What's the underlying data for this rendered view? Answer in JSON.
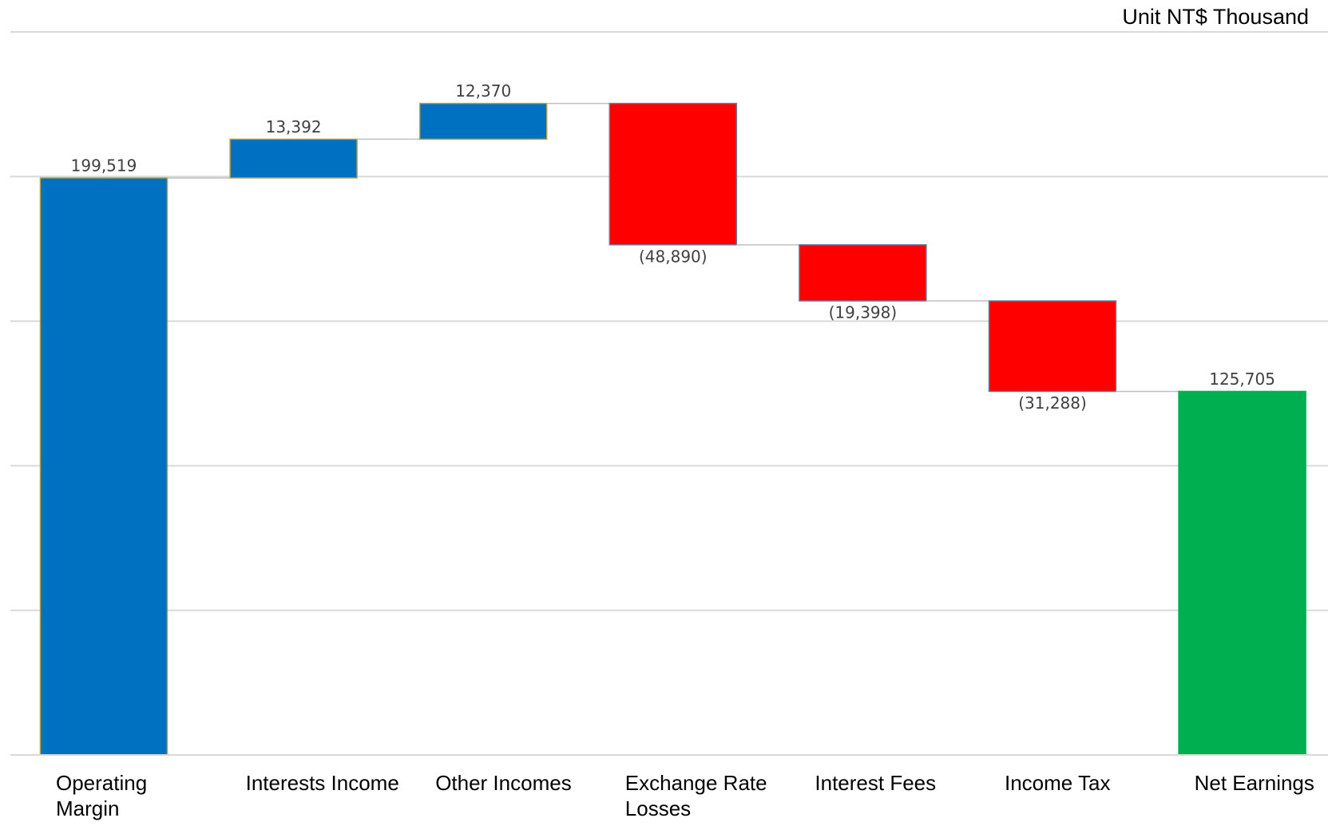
{
  "chart_data": {
    "type": "waterfall",
    "unit_label": "Unit NT$ Thousand",
    "categories": [
      "Operating Margin",
      "Interests Income",
      "Other Incomes",
      "Exchange Rate Losses",
      "Interest Fees",
      "Income Tax",
      "Net Earnings"
    ],
    "measure": [
      "absolute",
      "relative",
      "relative",
      "relative",
      "relative",
      "relative",
      "total"
    ],
    "values": [
      199519,
      13392,
      12370,
      -48890,
      -19398,
      -31288,
      125705
    ],
    "value_labels": [
      "199,519",
      "13,392",
      "12,370",
      "(48,890)",
      "(19,398)",
      "(31,288)",
      "125,705"
    ],
    "colors": [
      "#0070c0",
      "#0070c0",
      "#0070c0",
      "#ff0000",
      "#ff0000",
      "#ff0000",
      "#00b050"
    ],
    "ylim": [
      0,
      250000
    ],
    "yticks": [
      0,
      50000,
      100000,
      150000,
      200000,
      250000
    ],
    "grid": true
  }
}
